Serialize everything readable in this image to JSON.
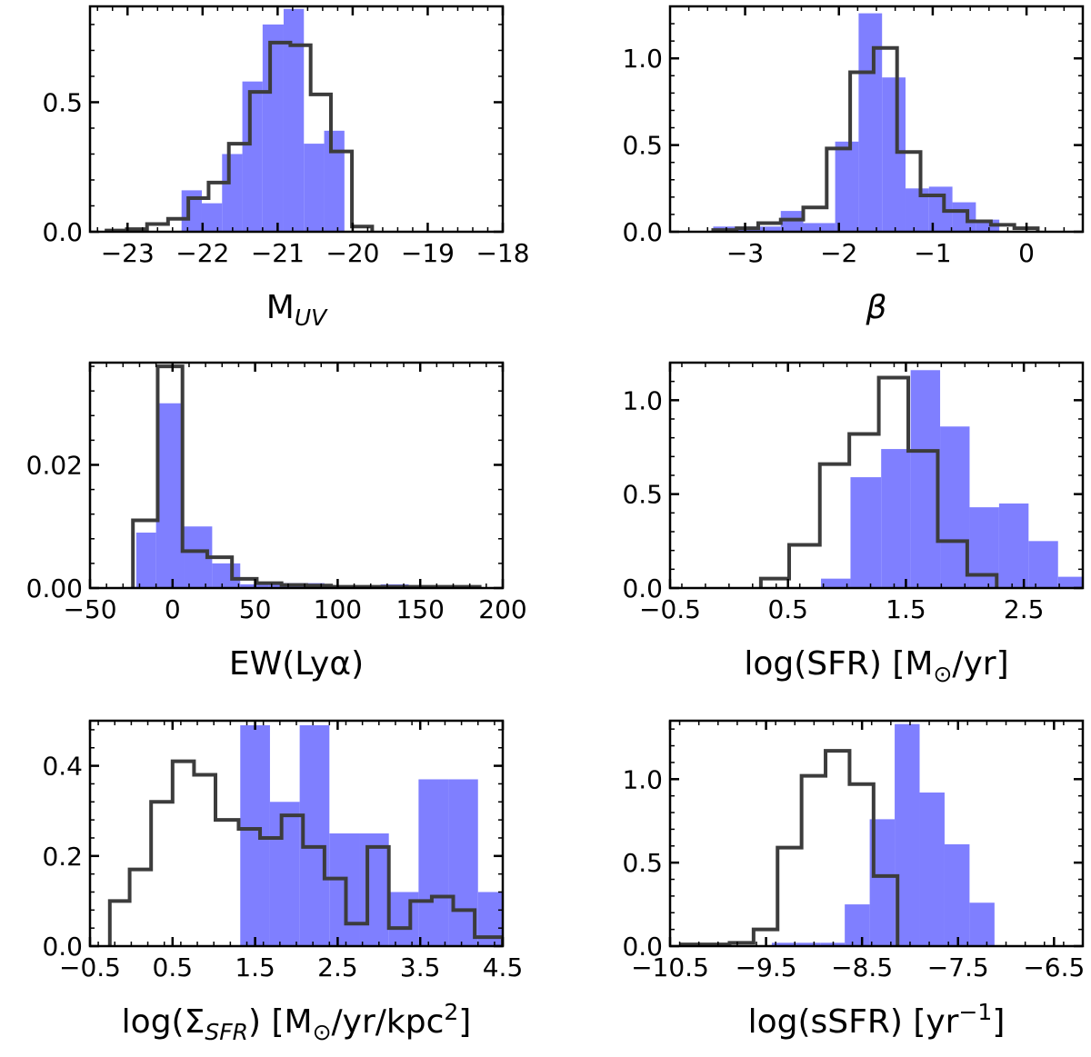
{
  "chart_data": [
    {
      "type": "bar",
      "panel": "top-left",
      "xlabel_main": "M",
      "xlabel_sub": "UV",
      "xlim": [
        -23.5,
        -18
      ],
      "ylim": [
        0,
        0.87
      ],
      "xticks": [
        -23,
        -22,
        -21,
        -20,
        -19,
        -18
      ],
      "xtick_labels": [
        "−23",
        "−22",
        "−21",
        "−20",
        "−19",
        "−18"
      ],
      "yticks": [
        0.0,
        0.5
      ],
      "ytick_labels": [
        "0.0",
        "0.5"
      ],
      "bin_edges": [
        -22.28,
        -22.01,
        -21.74,
        -21.47,
        -21.2,
        -20.92,
        -20.65,
        -20.38,
        -20.11,
        -19.84
      ],
      "series": [
        {
          "name": "filled",
          "style": "filled",
          "values": [
            0.16,
            0.11,
            0.3,
            0.58,
            0.8,
            0.86,
            0.34,
            0.39,
            0.0
          ]
        },
        {
          "name": "outline",
          "style": "step",
          "edges": [
            -23.28,
            -23.01,
            -22.74,
            -22.46,
            -22.19,
            -21.92,
            -21.65,
            -21.37,
            -21.1,
            -20.83,
            -20.56,
            -20.29,
            -20.01,
            -19.74
          ],
          "values": [
            0.005,
            0.01,
            0.03,
            0.05,
            0.13,
            0.19,
            0.34,
            0.54,
            0.73,
            0.72,
            0.53,
            0.31,
            0.02
          ]
        }
      ]
    },
    {
      "type": "bar",
      "panel": "top-right",
      "xlabel_main": "β",
      "xlim": [
        -3.8,
        0.6
      ],
      "ylim": [
        0,
        1.3
      ],
      "xticks": [
        -3,
        -2,
        -1,
        0
      ],
      "xtick_labels": [
        "−3",
        "−2",
        "−1",
        "0"
      ],
      "yticks": [
        0.0,
        0.5,
        1.0
      ],
      "ytick_labels": [
        "0.0",
        "0.5",
        "1.0"
      ],
      "bin_edges": [
        -3.34,
        -2.86,
        -2.38,
        -2.04,
        -1.79,
        -1.54,
        -1.29,
        -1.04,
        -0.79,
        -0.54,
        -0.29
      ],
      "series": [
        {
          "name": "filled",
          "style": "filled",
          "edges": [
            -3.34,
            -3.09,
            -2.86,
            -2.62,
            -2.38,
            -2.04,
            -1.79,
            -1.54,
            -1.29,
            -1.04,
            -0.79,
            -0.54,
            -0.29
          ],
          "values": [
            0.03,
            0.03,
            0.03,
            0.12,
            0.05,
            0.52,
            1.26,
            0.89,
            0.25,
            0.26,
            0.17,
            0.07
          ]
        },
        {
          "name": "outline",
          "style": "step",
          "edges": [
            -3.34,
            -3.09,
            -2.86,
            -2.62,
            -2.38,
            -2.13,
            -1.88,
            -1.63,
            -1.38,
            -1.13,
            -0.88,
            -0.63,
            -0.38,
            -0.13,
            0.12
          ],
          "values": [
            0.01,
            0.02,
            0.05,
            0.07,
            0.14,
            0.48,
            0.92,
            1.06,
            0.46,
            0.21,
            0.12,
            0.06,
            0.04,
            0.02
          ]
        }
      ]
    },
    {
      "type": "bar",
      "panel": "middle-left",
      "xlabel_main": "EW(Lyα)",
      "xlim": [
        -50,
        200
      ],
      "ylim": [
        0,
        0.0366
      ],
      "xticks": [
        -50,
        0,
        50,
        100,
        150,
        200
      ],
      "xtick_labels": [
        "−50",
        "0",
        "50",
        "100",
        "150",
        "200"
      ],
      "yticks": [
        0.0,
        0.02
      ],
      "ytick_labels": [
        "0.00",
        "0.02"
      ],
      "series": [
        {
          "name": "filled",
          "style": "filled",
          "edges": [
            -22,
            -10,
            7,
            24,
            41,
            58,
            75,
            92,
            109,
            126,
            143,
            160,
            177,
            194
          ],
          "values": [
            0.009,
            0.03,
            0.01,
            0.004,
            0.0006,
            0.0008,
            0.0008,
            0.0003,
            0.0002,
            0.0006,
            0.0,
            0.0003,
            0.0
          ]
        },
        {
          "name": "outline",
          "style": "step",
          "edges": [
            -24,
            -9,
            6,
            21,
            36,
            51,
            66,
            81,
            96,
            111,
            126,
            141,
            156,
            171,
            186
          ],
          "values": [
            0.011,
            0.036,
            0.006,
            0.005,
            0.0015,
            0.0008,
            0.0005,
            0.0004,
            0.0002,
            0.0002,
            0.0002,
            0.0002,
            0.0002,
            0.0002
          ]
        }
      ]
    },
    {
      "type": "bar",
      "panel": "middle-right",
      "xlabel_main": "log(SFR) [M",
      "xlabel_sub": "⊙",
      "xlabel_tail": "/yr]",
      "xlim": [
        -0.5,
        3.0
      ],
      "ylim": [
        0,
        1.2
      ],
      "xticks": [
        -0.5,
        0.5,
        1.5,
        2.5
      ],
      "xtick_labels": [
        "−0.5",
        "0.5",
        "1.5",
        "2.5"
      ],
      "yticks": [
        0.0,
        0.5,
        1.0
      ],
      "ytick_labels": [
        "0.0",
        "0.5",
        "1.0"
      ],
      "series": [
        {
          "name": "filled",
          "style": "filled",
          "edges": [
            0.78,
            1.03,
            1.29,
            1.54,
            1.79,
            2.04,
            2.29,
            2.54,
            2.79,
            3.0
          ],
          "values": [
            0.05,
            0.59,
            0.74,
            1.16,
            0.86,
            0.43,
            0.45,
            0.25,
            0.06
          ]
        },
        {
          "name": "outline",
          "style": "step",
          "edges": [
            0.27,
            0.51,
            0.77,
            1.02,
            1.27,
            1.52,
            1.77,
            2.02,
            2.27
          ],
          "values": [
            0.05,
            0.23,
            0.66,
            0.82,
            1.12,
            0.73,
            0.25,
            0.07
          ]
        }
      ]
    },
    {
      "type": "bar",
      "panel": "bottom-left",
      "xlabel_main": "log(Σ",
      "xlabel_sub": "SFR",
      "xlabel_tail": ") [M",
      "xlabel_sub2": "⊙",
      "xlabel_tail2": "/yr/kpc",
      "xlabel_sup": "2",
      "xlabel_end": "]",
      "xlim": [
        -0.5,
        4.5
      ],
      "ylim": [
        0,
        0.5
      ],
      "xticks": [
        -0.5,
        0.5,
        1.5,
        2.5,
        3.5,
        4.5
      ],
      "xtick_labels": [
        "−0.5",
        "0.5",
        "1.5",
        "2.5",
        "3.5",
        "4.5"
      ],
      "yticks": [
        0.0,
        0.2,
        0.4
      ],
      "ytick_labels": [
        "0.0",
        "0.2",
        "0.4"
      ],
      "series": [
        {
          "name": "filled",
          "style": "filled",
          "edges": [
            1.32,
            1.68,
            2.04,
            2.4,
            2.76,
            3.12,
            3.48,
            3.84,
            4.2,
            4.5
          ],
          "values": [
            0.49,
            0.32,
            0.49,
            0.25,
            0.25,
            0.12,
            0.37,
            0.37,
            0.12
          ]
        },
        {
          "name": "outline",
          "style": "step",
          "edges": [
            -0.26,
            -0.02,
            0.24,
            0.5,
            0.76,
            1.02,
            1.3,
            1.56,
            1.82,
            2.08,
            2.34,
            2.6,
            2.86,
            3.12,
            3.38,
            3.64,
            3.9,
            4.16,
            4.5
          ],
          "values": [
            0.1,
            0.17,
            0.32,
            0.41,
            0.38,
            0.28,
            0.26,
            0.24,
            0.29,
            0.22,
            0.15,
            0.05,
            0.22,
            0.04,
            0.1,
            0.11,
            0.08,
            0.02
          ]
        }
      ]
    },
    {
      "type": "bar",
      "panel": "bottom-right",
      "xlabel_main": "log(sSFR) [yr",
      "xlabel_sup": "−1",
      "xlabel_end": "]",
      "xlim": [
        -10.5,
        -6.2
      ],
      "ylim": [
        0,
        1.35
      ],
      "xticks": [
        -10.5,
        -9.5,
        -8.5,
        -7.5,
        -6.5
      ],
      "xtick_labels": [
        "−10.5",
        "−9.5",
        "−8.5",
        "−7.5",
        "−6.5"
      ],
      "yticks": [
        0.0,
        0.5,
        1.0
      ],
      "ytick_labels": [
        "0.0",
        "0.5",
        "1.0"
      ],
      "series": [
        {
          "name": "filled",
          "style": "filled",
          "edges": [
            -9.44,
            -9.18,
            -8.93,
            -8.68,
            -8.42,
            -8.16,
            -7.9,
            -7.64,
            -7.38,
            -7.12
          ],
          "values": [
            0.02,
            0.02,
            0.02,
            0.25,
            0.76,
            1.33,
            0.92,
            0.61,
            0.26
          ]
        },
        {
          "name": "outline",
          "style": "step",
          "edges": [
            -10.38,
            -10.13,
            -9.88,
            -9.63,
            -9.38,
            -9.13,
            -8.88,
            -8.63,
            -8.38,
            -8.13
          ],
          "values": [
            0.01,
            0.01,
            0.02,
            0.1,
            0.59,
            1.02,
            1.17,
            0.97,
            0.42
          ]
        }
      ]
    }
  ]
}
